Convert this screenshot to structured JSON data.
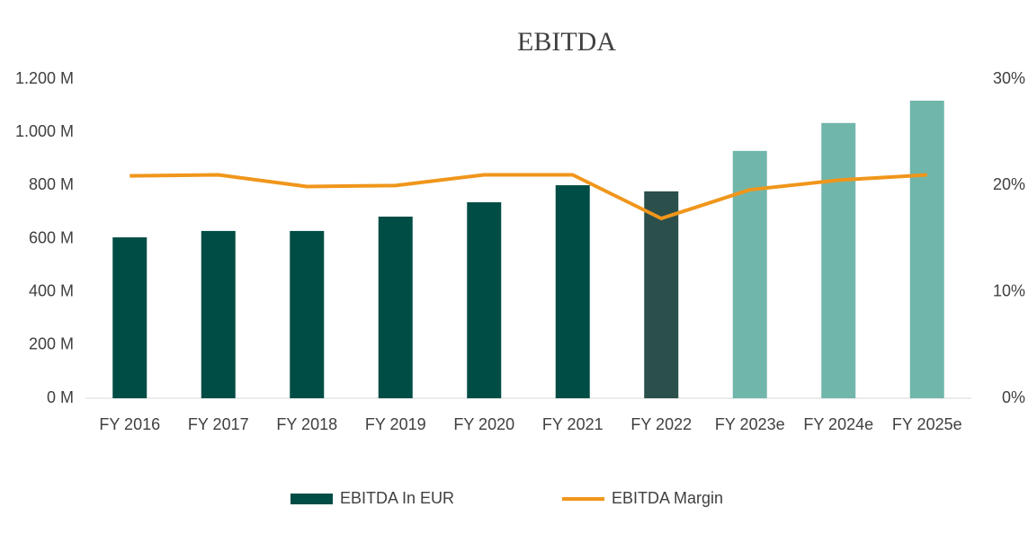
{
  "chart_data": {
    "type": "bar-line",
    "title": "EBITDA",
    "categories": [
      "FY 2016",
      "FY 2017",
      "FY 2018",
      "FY 2019",
      "FY 2020",
      "FY 2021",
      "FY 2022",
      "FY 2023e",
      "FY 2024e",
      "FY 2025e"
    ],
    "series": [
      {
        "name": "EBITDA In EUR",
        "type": "bar",
        "color": "#004d45",
        "colors": [
          "#004d45",
          "#004d45",
          "#004d45",
          "#004d45",
          "#004d45",
          "#004d45",
          "#2b4f4b",
          "#71b6ab",
          "#71b6ab",
          "#71b6ab"
        ],
        "values": [
          605,
          629,
          629,
          683,
          737,
          801,
          778,
          930,
          1035,
          1119
        ]
      },
      {
        "name": "EBITDA Margin",
        "type": "line",
        "axis": "y2",
        "color": "#f0961b",
        "values": [
          20.9,
          21.0,
          19.9,
          20.0,
          21.0,
          21.0,
          16.9,
          19.6,
          20.5,
          21.0
        ]
      }
    ],
    "ylim": [
      0,
      1200
    ],
    "yticks": [
      {
        "value": 0,
        "label": "0 M"
      },
      {
        "value": 200,
        "label": "200 M"
      },
      {
        "value": 400,
        "label": "400 M"
      },
      {
        "value": 600,
        "label": "600 M"
      },
      {
        "value": 800,
        "label": "800 M"
      },
      {
        "value": 1000,
        "label": "1.000 M"
      },
      {
        "value": 1200,
        "label": "1.200 M"
      }
    ],
    "y2lim": [
      0,
      30
    ],
    "y2ticks": [
      {
        "value": 0,
        "label": "0%"
      },
      {
        "value": 10,
        "label": "10%"
      },
      {
        "value": 20,
        "label": "20%"
      },
      {
        "value": 30,
        "label": "30%"
      }
    ],
    "legend": "bottom"
  }
}
